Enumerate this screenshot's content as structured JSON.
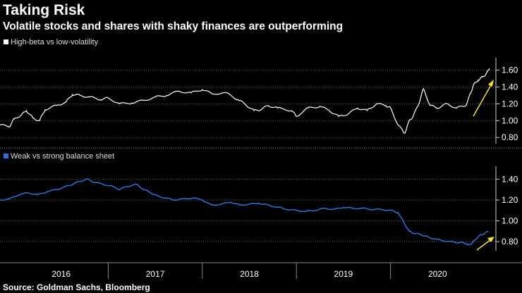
{
  "title": "Taking Risk",
  "subtitle": "Volatile stocks and shares with shaky finances are outperforming",
  "source": "Source: Goldman Sachs, Bloomberg",
  "colors": {
    "background": "#000000",
    "series1": "#ffffff",
    "series2": "#2f6fd6",
    "arrow": "#f2e33c",
    "grid": "#5a5a5a"
  },
  "chart_data": [
    {
      "type": "line",
      "legend": "High-beta vs low-volatility",
      "legend_position": "top-left",
      "grid": true,
      "ylim": [
        0.76,
        1.68
      ],
      "yticks": [
        "1.60",
        "1.40",
        "1.20",
        "1.00",
        "0.80"
      ],
      "ytick_values": [
        1.6,
        1.4,
        1.2,
        1.0,
        0.8
      ],
      "annotation": "upward arrow",
      "series": [
        {
          "x": [
            2015.85,
            2015.95,
            2016.0,
            2016.08,
            2016.13,
            2016.2,
            2016.27,
            2016.33,
            2016.45,
            2016.55,
            2016.62,
            2016.7,
            2016.8,
            2016.92,
            2017.0,
            2017.12,
            2017.25,
            2017.38,
            2017.5,
            2017.62,
            2017.75,
            2017.88,
            2018.0,
            2018.1,
            2018.25,
            2018.38,
            2018.45,
            2018.55,
            2018.62,
            2018.7,
            2018.8,
            2018.95,
            2019.0,
            2019.12,
            2019.25,
            2019.35,
            2019.45,
            2019.55,
            2019.65,
            2019.75,
            2019.85,
            2019.95,
            2020.0,
            2020.08,
            2020.15,
            2020.2,
            2020.24,
            2020.3,
            2020.35,
            2020.42,
            2020.5,
            2020.6,
            2020.7,
            2020.8,
            2020.85,
            2020.88,
            2020.93,
            2020.98,
            2021.02,
            2021.05
          ],
          "values": [
            0.95,
            0.93,
            1.02,
            1.07,
            1.12,
            1.03,
            1.0,
            1.13,
            1.18,
            1.22,
            1.31,
            1.3,
            1.28,
            1.25,
            1.27,
            1.2,
            1.21,
            1.24,
            1.28,
            1.3,
            1.35,
            1.33,
            1.37,
            1.32,
            1.33,
            1.25,
            1.2,
            1.12,
            1.13,
            1.18,
            1.15,
            1.12,
            1.05,
            1.15,
            1.17,
            1.12,
            1.05,
            1.08,
            1.15,
            1.12,
            1.2,
            1.18,
            1.15,
            0.95,
            0.85,
            1.0,
            1.05,
            1.2,
            1.38,
            1.18,
            1.15,
            1.2,
            1.15,
            1.18,
            1.32,
            1.42,
            1.48,
            1.52,
            1.56,
            1.62
          ]
        }
      ]
    },
    {
      "type": "line",
      "legend": "Weak vs strong balance sheet",
      "legend_position": "top-left",
      "grid": true,
      "ylim": [
        0.74,
        1.47
      ],
      "yticks": [
        "1.40",
        "1.20",
        "1.00",
        "0.80"
      ],
      "ytick_values": [
        1.4,
        1.2,
        1.0,
        0.8
      ],
      "annotation": "upward arrow",
      "series": [
        {
          "x": [
            2015.85,
            2015.95,
            2016.05,
            2016.15,
            2016.25,
            2016.35,
            2016.45,
            2016.55,
            2016.62,
            2016.7,
            2016.78,
            2016.85,
            2016.95,
            2017.05,
            2017.12,
            2017.2,
            2017.3,
            2017.38,
            2017.45,
            2017.52,
            2017.6,
            2017.7,
            2017.8,
            2017.9,
            2018.0,
            2018.1,
            2018.2,
            2018.3,
            2018.4,
            2018.5,
            2018.6,
            2018.7,
            2018.8,
            2018.9,
            2019.0,
            2019.1,
            2019.2,
            2019.3,
            2019.4,
            2019.5,
            2019.6,
            2019.7,
            2019.8,
            2019.9,
            2020.0,
            2020.08,
            2020.15,
            2020.2,
            2020.25,
            2020.32,
            2020.38,
            2020.45,
            2020.55,
            2020.65,
            2020.72,
            2020.78,
            2020.82,
            2020.86,
            2020.9,
            2020.95,
            2021.0,
            2021.04
          ],
          "values": [
            1.2,
            1.21,
            1.25,
            1.27,
            1.25,
            1.28,
            1.3,
            1.33,
            1.35,
            1.38,
            1.4,
            1.37,
            1.35,
            1.33,
            1.3,
            1.33,
            1.35,
            1.3,
            1.27,
            1.24,
            1.22,
            1.2,
            1.21,
            1.22,
            1.2,
            1.15,
            1.16,
            1.18,
            1.15,
            1.16,
            1.17,
            1.15,
            1.13,
            1.11,
            1.1,
            1.09,
            1.1,
            1.12,
            1.11,
            1.13,
            1.12,
            1.12,
            1.11,
            1.11,
            1.1,
            1.08,
            0.97,
            0.9,
            0.88,
            0.87,
            0.85,
            0.83,
            0.81,
            0.8,
            0.79,
            0.79,
            0.77,
            0.78,
            0.82,
            0.86,
            0.88,
            0.9
          ]
        }
      ]
    }
  ],
  "x_axis": {
    "labels": [
      "2016",
      "2017",
      "2018",
      "2019",
      "2020"
    ],
    "label_values": [
      2016.5,
      2017.5,
      2018.5,
      2019.5,
      2020.5
    ],
    "dividers": [
      2017.0,
      2018.0,
      2019.0,
      2020.0
    ],
    "xlim": [
      2015.85,
      2021.12
    ]
  }
}
